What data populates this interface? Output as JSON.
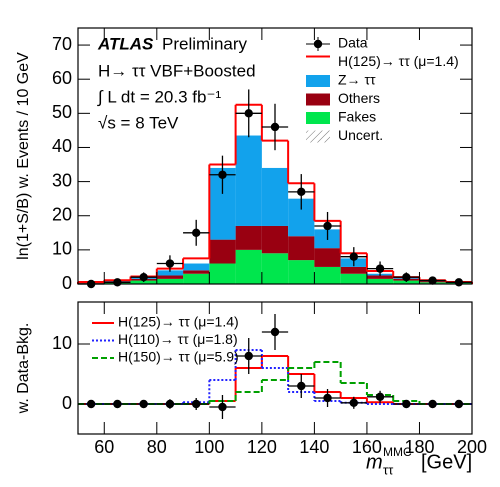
{
  "chart_data": [
    {
      "type": "histogram",
      "ylabel": "ln(1+S/B) w. Events / 10 GeV",
      "annotations": {
        "experiment": "ATLAS",
        "status": "Preliminary",
        "channel": "H→ ττ VBF+Boosted",
        "luminosity": "∫ L dt = 20.3 fb⁻¹",
        "energy": "√s = 8 TeV"
      },
      "bins": [
        50,
        60,
        70,
        80,
        90,
        100,
        110,
        120,
        130,
        140,
        150,
        160,
        170,
        180,
        190,
        200
      ],
      "xlim": [
        50,
        200
      ],
      "ylim": [
        0,
        75
      ],
      "yticks": [
        0,
        10,
        20,
        30,
        40,
        50,
        60,
        70
      ],
      "stacked": true,
      "series": [
        {
          "name": "Fakes",
          "color": "#00e64d",
          "style": "fill",
          "values": [
            0.2,
            0.5,
            1,
            1.5,
            3,
            6,
            10,
            9,
            7,
            5,
            3,
            1.5,
            1,
            0.5,
            0.3
          ]
        },
        {
          "name": "Others",
          "color": "#990011",
          "style": "fill",
          "values": [
            0.1,
            0.2,
            0.5,
            1,
            1,
            7,
            7,
            8,
            7,
            5.5,
            2,
            1,
            0.5,
            0.3,
            0.1
          ]
        },
        {
          "name": "Z→ ττ",
          "color": "#12a2ec",
          "style": "fill",
          "values": [
            0.2,
            0.3,
            0.5,
            1.5,
            2,
            21,
            26.5,
            17,
            11,
            5.5,
            2.5,
            0.5,
            0.3,
            0.2,
            0.1
          ]
        },
        {
          "name": "H(125)→ ττ (μ=1.4)",
          "color": "#ff0000",
          "style": "step",
          "dash": "solid",
          "values": [
            0.1,
            0.1,
            0.2,
            0.5,
            1.5,
            1,
            9,
            8,
            4.5,
            2.5,
            1.5,
            0.8,
            0.2,
            0.1,
            0.1
          ]
        }
      ],
      "data": {
        "name": "Data",
        "color": "#000000",
        "values": [
          0,
          0.5,
          2,
          6,
          15,
          32,
          50,
          46,
          27,
          17,
          8,
          4.5,
          2,
          1,
          0.5
        ],
        "errors": [
          0.5,
          0.7,
          1.4,
          2.4,
          3.8,
          5.6,
          7,
          6.8,
          5.2,
          4.1,
          2.8,
          2.1,
          1.4,
          1,
          0.7
        ]
      },
      "uncertainty_label": "Uncert."
    },
    {
      "type": "histogram",
      "ylabel": "w. Data-Bkg.",
      "xlabel": {
        "symbol": "m",
        "sub": "ττ",
        "sup": "MMC",
        "unit": "[GeV]"
      },
      "bins": [
        50,
        60,
        70,
        80,
        90,
        100,
        110,
        120,
        130,
        140,
        150,
        160,
        170,
        180,
        190,
        200
      ],
      "xlim": [
        50,
        200
      ],
      "xticks": [
        60,
        80,
        100,
        120,
        140,
        160,
        180,
        200
      ],
      "ylim": [
        -5,
        17
      ],
      "yticks": [
        0,
        10
      ],
      "stacked": false,
      "series": [
        {
          "name": "H(125)→ ττ (μ=1.4)",
          "color": "#ff0000",
          "style": "step",
          "dash": "solid",
          "values": [
            0,
            0,
            0,
            0,
            0,
            0.5,
            6,
            8,
            5,
            2,
            1,
            0.3,
            0,
            0,
            0
          ]
        },
        {
          "name": "H(110)→ ττ (μ=1.8)",
          "color": "#2222ff",
          "style": "step",
          "dash": "dotted",
          "values": [
            0,
            0,
            0,
            0,
            0.3,
            4,
            9,
            6,
            2,
            0.5,
            0.2,
            0,
            0,
            0,
            0
          ]
        },
        {
          "name": "H(150)→ ττ (μ=5.9)",
          "color": "#00a000",
          "style": "step",
          "dash": "dashed",
          "values": [
            0,
            0,
            0,
            0,
            0,
            0.5,
            2,
            4,
            6,
            7,
            3.5,
            1.5,
            0.5,
            0,
            0
          ]
        }
      ],
      "data": {
        "color": "#000000",
        "values": [
          0,
          0,
          0,
          0,
          0,
          -0.5,
          8,
          12,
          3,
          1,
          0.2,
          1.2,
          0,
          0,
          0
        ],
        "errors": [
          0.5,
          0.5,
          0.6,
          0.8,
          1,
          2,
          3,
          3,
          2,
          1.5,
          1,
          1,
          0.6,
          0.5,
          0.5
        ]
      }
    }
  ]
}
